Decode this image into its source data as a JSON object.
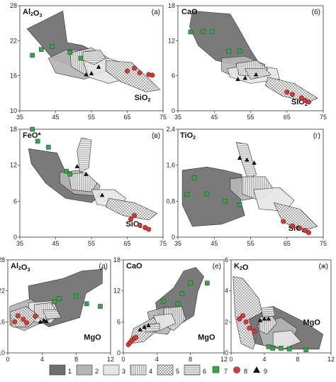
{
  "colors": {
    "c1": "#6f6f6f",
    "c2": "#b5b5b5",
    "c3": "#e6e6e6",
    "green": "#3ba14a",
    "red": "#d63a32",
    "black": "#111111"
  },
  "chart_data": [
    {
      "type": "scatter",
      "panel": "Al2O3-SiO2",
      "y_element": "Al",
      "y_sub": "2",
      "y_mid": "O",
      "y_sub2": "3",
      "x_element": "SiO",
      "x_sub": "2",
      "letter": "(а)",
      "xlim": [
        35,
        75
      ],
      "ylim": [
        10,
        28
      ],
      "xticks": [
        "35",
        "45",
        "55",
        "65",
        "75"
      ],
      "yticks": [
        "10",
        "16",
        "22",
        "28"
      ],
      "green": [
        [
          38.5,
          19.5
        ],
        [
          41,
          20.5
        ],
        [
          44,
          21
        ],
        [
          49,
          20
        ],
        [
          52,
          19
        ]
      ],
      "red": [
        [
          65,
          16.8
        ],
        [
          67,
          17.3
        ],
        [
          68.5,
          16.5
        ],
        [
          71,
          16.2
        ],
        [
          72,
          16.1
        ]
      ],
      "triangle": [
        [
          53.5,
          16.2
        ],
        [
          55,
          16.4
        ],
        [
          57,
          17.5
        ]
      ]
    },
    {
      "type": "scatter",
      "panel": "CaO-SiO2",
      "y_element": "CaO",
      "x_element": "SiO",
      "x_sub": "2",
      "letter": "(б)",
      "xlim": [
        35,
        75
      ],
      "ylim": [
        0,
        18
      ],
      "xticks": [
        "35",
        "45",
        "55",
        "65",
        "75"
      ],
      "yticks": [
        "0",
        "6",
        "12",
        "18"
      ],
      "green": [
        [
          38.5,
          13.5
        ],
        [
          42,
          13.6
        ],
        [
          44.5,
          13.6
        ],
        [
          49,
          10.2
        ],
        [
          52,
          10.2
        ]
      ],
      "red": [
        [
          65,
          3.2
        ],
        [
          66.5,
          2.8
        ],
        [
          69,
          2.2
        ],
        [
          70,
          1.8
        ],
        [
          71,
          1.5
        ]
      ],
      "triangle": [
        [
          51.5,
          5.4
        ],
        [
          53.5,
          5.6
        ],
        [
          56.5,
          6.2
        ]
      ]
    },
    {
      "type": "scatter",
      "panel": "FeO-SiO2",
      "y_element": "FeO*",
      "x_element": "SiO",
      "x_sub": "2",
      "letter": "(в)",
      "xlim": [
        35,
        75
      ],
      "ylim": [
        0,
        18
      ],
      "xticks": [
        "35",
        "45",
        "55",
        "65",
        "75"
      ],
      "yticks": [
        "0",
        "6",
        "12",
        "18"
      ],
      "green": [
        [
          38.5,
          18
        ],
        [
          40,
          16
        ],
        [
          43,
          15
        ],
        [
          48,
          11
        ],
        [
          49,
          10.5
        ]
      ],
      "red": [
        [
          66,
          3
        ],
        [
          67,
          3.6
        ],
        [
          68.5,
          2
        ],
        [
          70,
          1.6
        ],
        [
          71,
          1.3
        ]
      ],
      "triangle": [
        [
          51,
          11.8
        ],
        [
          53.5,
          10.5
        ],
        [
          58,
          7
        ]
      ]
    },
    {
      "type": "scatter",
      "panel": "TiO2-SiO2",
      "y_element": "TiO",
      "y_sub": "2",
      "x_element": "SiO",
      "x_sub": "2",
      "letter": "(г)",
      "xlim": [
        35,
        75
      ],
      "ylim": [
        0,
        2.4
      ],
      "xticks": [
        "35",
        "45",
        "55",
        "65",
        "75"
      ],
      "yticks": [
        "0",
        "0,8",
        "1,6",
        "2,4"
      ],
      "yticks_vals": [
        0,
        0.8,
        1.6,
        2.4
      ],
      "green": [
        [
          37.5,
          0.95
        ],
        [
          39.5,
          1.32
        ],
        [
          43,
          0.96
        ],
        [
          48,
          0.8
        ],
        [
          52,
          0.72
        ]
      ],
      "red": [
        [
          64,
          0.35
        ],
        [
          66.5,
          0.25
        ],
        [
          68.5,
          0.2
        ],
        [
          70,
          0.15
        ],
        [
          71,
          0.1
        ]
      ],
      "triangle": [
        [
          52,
          1.76
        ],
        [
          54,
          1.72
        ],
        [
          56,
          1.65
        ]
      ]
    },
    {
      "type": "scatter",
      "panel": "Al2O3-MgO",
      "y_element": "Al",
      "y_sub": "2",
      "y_mid": "O",
      "y_sub2": "3",
      "x_element": "MgO",
      "letter": "(д)",
      "xlim": [
        0,
        12
      ],
      "ylim": [
        10,
        28
      ],
      "xticks": [
        "0",
        "4",
        "8",
        "12"
      ],
      "yticks": [
        "10",
        "16",
        "22",
        "28"
      ],
      "green": [
        [
          5.4,
          19.9
        ],
        [
          6,
          20.5
        ],
        [
          8,
          21
        ],
        [
          9.2,
          19.5
        ],
        [
          10.8,
          19
        ]
      ],
      "red": [
        [
          0.8,
          16
        ],
        [
          1.2,
          17.2
        ],
        [
          1.8,
          16.5
        ],
        [
          2.2,
          15.8
        ],
        [
          3.2,
          17.1
        ]
      ],
      "triangle": [
        [
          3.8,
          16
        ],
        [
          4.2,
          16.3
        ],
        [
          4.5,
          16.1
        ]
      ]
    },
    {
      "type": "scatter",
      "panel": "CaO-MgO",
      "y_element": "CaO",
      "x_element": "MgO",
      "letter": "(е)",
      "xlim": [
        0,
        12
      ],
      "ylim": [
        0,
        18
      ],
      "xticks": [
        "0",
        "4",
        "8",
        "12"
      ],
      "yticks": [
        "0",
        "6",
        "12",
        "18"
      ],
      "green": [
        [
          4.8,
          10
        ],
        [
          6.5,
          9.5
        ],
        [
          7,
          11.5
        ],
        [
          8,
          13.5
        ],
        [
          10,
          13.5
        ]
      ],
      "red": [
        [
          0.6,
          1.6
        ],
        [
          0.8,
          2
        ],
        [
          1,
          2.4
        ],
        [
          1.3,
          2.8
        ],
        [
          1.5,
          3
        ]
      ],
      "triangle": [
        [
          2,
          4.5
        ],
        [
          2.5,
          5
        ],
        [
          3,
          5.3
        ]
      ]
    },
    {
      "type": "scatter",
      "panel": "K2O-MgO",
      "y_element": "K",
      "y_sub": "2",
      "y_mid": "O",
      "x_element": "MgO",
      "letter": "(ж)",
      "xlim": [
        0,
        12
      ],
      "ylim": [
        0,
        6
      ],
      "xticks": [
        "0",
        "4",
        "8",
        "12"
      ],
      "yticks": [
        "0",
        "2",
        "4",
        "6"
      ],
      "green": [
        [
          4.5,
          0.4
        ],
        [
          5,
          0.3
        ],
        [
          6,
          0.3
        ],
        [
          7,
          0.25
        ],
        [
          9,
          0.2
        ]
      ],
      "red": [
        [
          1,
          2.2
        ],
        [
          1.4,
          2.4
        ],
        [
          1.8,
          2
        ],
        [
          2.2,
          1.6
        ],
        [
          2.8,
          1.4
        ]
      ],
      "triangle": [
        [
          3.5,
          2.1
        ],
        [
          4,
          2.2
        ],
        [
          4.5,
          2.2
        ]
      ]
    }
  ],
  "legend": {
    "items": [
      "1",
      "2",
      "3",
      "4",
      "5",
      "6",
      "7",
      "8",
      "9"
    ]
  }
}
